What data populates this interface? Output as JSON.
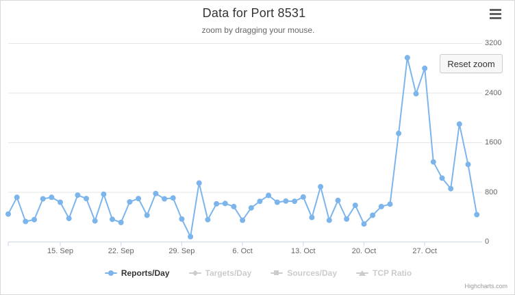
{
  "header": {
    "title": "Data for Port 8531",
    "subtitle": "zoom by dragging your mouse."
  },
  "reset_zoom_label": "Reset zoom",
  "credits": "Highcharts.com",
  "colors": {
    "series_blue": "#7cb5ec",
    "grid_line": "#e6e6e6",
    "axis_line": "#ccd6eb",
    "axis_label": "#666666",
    "title_text": "#333333",
    "subtitle_text": "#666666",
    "legend_active_text": "#333333",
    "legend_inactive": "#cccccc",
    "button_bg": "#f7f7f7",
    "button_border": "#cccccc",
    "menu_icon": "#616161"
  },
  "chart_data": {
    "type": "line",
    "title": "Data for Port 8531",
    "subtitle": "zoom by dragging your mouse.",
    "grid": true,
    "ylim": [
      0,
      3200
    ],
    "yticks": [
      0,
      800,
      1600,
      2400,
      3200
    ],
    "yaxis_position": "right",
    "legend_position": "bottom",
    "xticklabels": [
      "15. Sep",
      "22. Sep",
      "29. Sep",
      "6. Oct",
      "13. Oct",
      "20. Oct",
      "27. Oct"
    ],
    "xtick_day_index": [
      6,
      13,
      20,
      27,
      34,
      41,
      48
    ],
    "series": [
      {
        "name": "Reports/Day",
        "visible": true,
        "marker": "circle",
        "color": "#7cb5ec",
        "x": [
          "9. Sep",
          "10. Sep",
          "11. Sep",
          "12. Sep",
          "13. Sep",
          "14. Sep",
          "15. Sep",
          "16. Sep",
          "17. Sep",
          "18. Sep",
          "19. Sep",
          "20. Sep",
          "21. Sep",
          "22. Sep",
          "23. Sep",
          "24. Sep",
          "25. Sep",
          "26. Sep",
          "27. Sep",
          "28. Sep",
          "29. Sep",
          "30. Sep",
          "1. Oct",
          "2. Oct",
          "3. Oct",
          "4. Oct",
          "5. Oct",
          "6. Oct",
          "7. Oct",
          "8. Oct",
          "9. Oct",
          "10. Oct",
          "11. Oct",
          "12. Oct",
          "13. Oct",
          "14. Oct",
          "15. Oct",
          "16. Oct",
          "17. Oct",
          "18. Oct",
          "19. Oct",
          "20. Oct",
          "21. Oct",
          "22. Oct",
          "23. Oct",
          "24. Oct",
          "25. Oct",
          "26. Oct",
          "27. Oct",
          "28. Oct",
          "29. Oct",
          "30. Oct",
          "31. Oct",
          "1. Nov",
          "2. Nov"
        ],
        "values": [
          450,
          720,
          330,
          360,
          695,
          720,
          640,
          380,
          755,
          700,
          340,
          770,
          365,
          315,
          645,
          700,
          430,
          780,
          695,
          710,
          370,
          85,
          950,
          360,
          615,
          620,
          570,
          350,
          550,
          655,
          750,
          640,
          660,
          655,
          725,
          395,
          890,
          350,
          670,
          370,
          590,
          290,
          430,
          570,
          610,
          1750,
          2970,
          2390,
          2800,
          1290,
          1030,
          860,
          1900,
          1250,
          440
        ]
      },
      {
        "name": "Targets/Day",
        "visible": false,
        "marker": "diamond",
        "color": "#cccccc"
      },
      {
        "name": "Sources/Day",
        "visible": false,
        "marker": "square",
        "color": "#cccccc"
      },
      {
        "name": "TCP Ratio",
        "visible": false,
        "marker": "triangle",
        "color": "#cccccc"
      }
    ]
  }
}
